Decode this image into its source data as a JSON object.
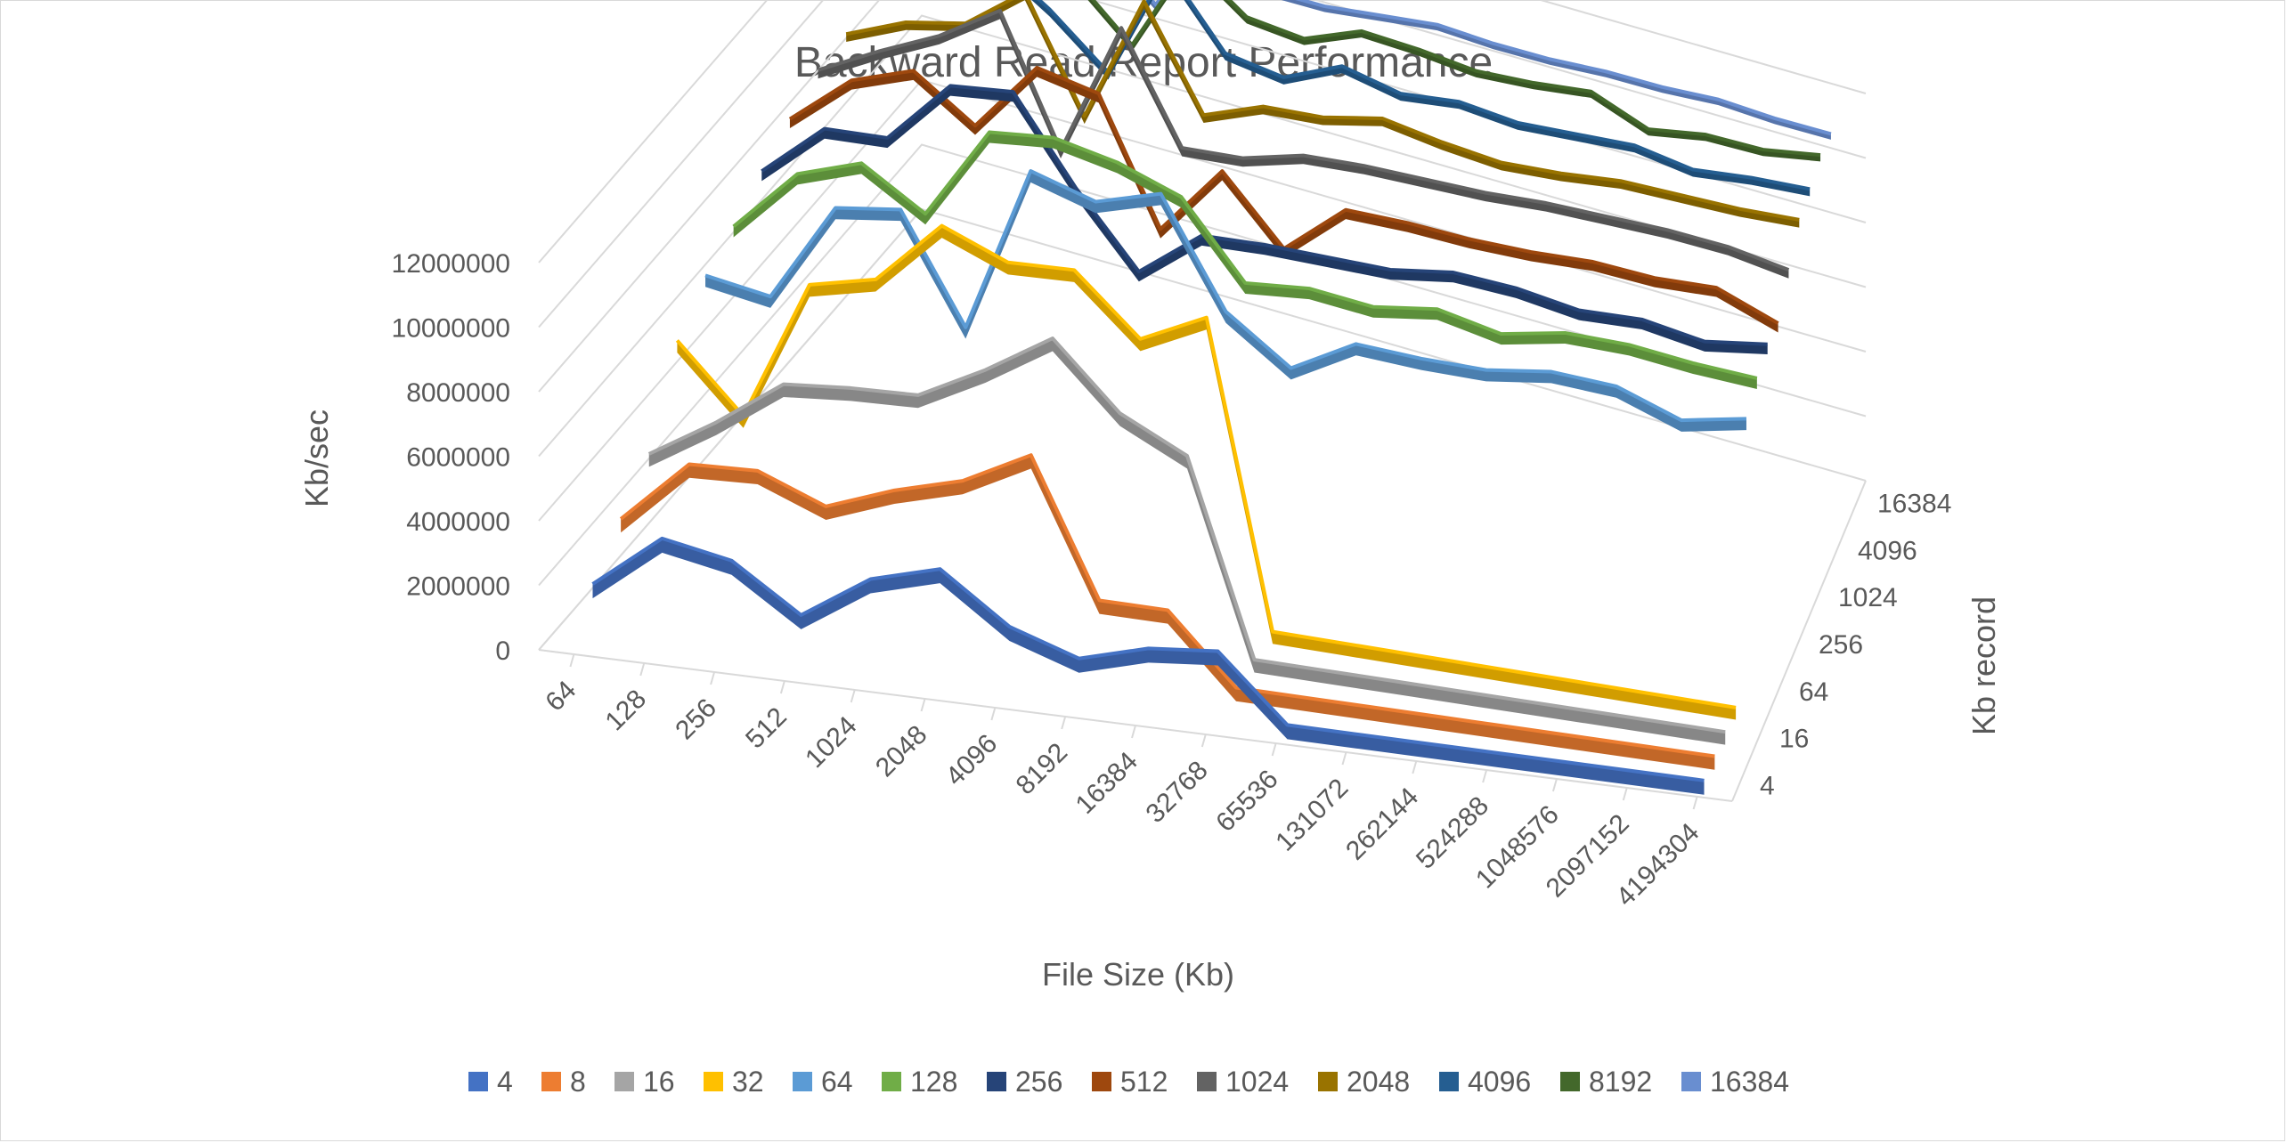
{
  "chart_data": {
    "type": "line",
    "subtype": "3d-line",
    "title": "Backward Read Report Performance",
    "xlabel": "File Size (Kb)",
    "ylabel": "Kb/sec",
    "zlabel": "Kb record",
    "ylim": [
      0,
      12000000
    ],
    "y_ticks": [
      "0",
      "2000000",
      "4000000",
      "6000000",
      "8000000",
      "10000000",
      "12000000"
    ],
    "categories": [
      "64",
      "128",
      "256",
      "512",
      "1024",
      "2048",
      "4096",
      "8192",
      "16384",
      "32768",
      "65536",
      "131072",
      "262144",
      "524288",
      "1048576",
      "2097152",
      "4194304"
    ],
    "depth_ticks": [
      "4",
      "16",
      "64",
      "256",
      "1024",
      "4096",
      "16384"
    ],
    "legend_position": "bottom",
    "grid": true,
    "series": [
      {
        "name": "4",
        "color": "#4472C4",
        "values": [
          1500000,
          3200000,
          2800000,
          1400000,
          2800000,
          3400000,
          1900000,
          1200000,
          1800000,
          2000000,
          0,
          0,
          0,
          0,
          0,
          0,
          0
        ]
      },
      {
        "name": "8",
        "color": "#ED7D31",
        "values": [
          2500000,
          4500000,
          4600000,
          3800000,
          4600000,
          5200000,
          6300000,
          2100000,
          2100000,
          0,
          0,
          0,
          0,
          0,
          0,
          0,
          0
        ]
      },
      {
        "name": "16",
        "color": "#A5A5A5",
        "values": [
          3500000,
          4800000,
          6300000,
          6500000,
          6600000,
          7700000,
          9000000,
          7000000,
          6000000,
          0,
          0,
          0,
          0,
          0,
          0,
          0,
          0
        ]
      },
      {
        "name": "32",
        "color": "#FFC000",
        "values": [
          6000000,
          4000000,
          8400000,
          8900000,
          10900000,
          10100000,
          10200000,
          8400000,
          9400000,
          0,
          0,
          0,
          0,
          0,
          0,
          0,
          0
        ]
      },
      {
        "name": "64",
        "color": "#5B9BD5",
        "values": [
          7000000,
          6700000,
          9800000,
          10100000,
          6800000,
          12000000,
          11400000,
          12000000,
          8700000,
          7300000,
          8400000,
          8300000,
          8300000,
          8600000,
          8500000,
          7800000,
          8200000
        ]
      },
      {
        "name": "128",
        "color": "#70AD47",
        "values": [
          7500000,
          9500000,
          10200000,
          9000000,
          11900000,
          12100000,
          11700000,
          11000000,
          8700000,
          8900000,
          8700000,
          9000000,
          8600000,
          9000000,
          9000000,
          8800000,
          8700000
        ]
      },
      {
        "name": "256",
        "color": "#264478",
        "values": [
          8200000,
          9900000,
          10000000,
          12000000,
          12200000,
          9600000,
          7400000,
          8900000,
          9000000,
          9000000,
          9000000,
          9300000,
          9200000,
          8900000,
          9000000,
          8700000,
          9000000
        ]
      },
      {
        "name": "512",
        "color": "#9E480E",
        "values": [
          8800000,
          10400000,
          11100000,
          9800000,
          12000000,
          11600000,
          7800000,
          10000000,
          8000000,
          9600000,
          9600000,
          9500000,
          9500000,
          9600000,
          9500000,
          9600000,
          8900000
        ]
      },
      {
        "name": "1024",
        "color": "#636363",
        "values": [
          9300000,
          10300000,
          11200000,
          12400000,
          8500000,
          12700000,
          9400000,
          9500000,
          10000000,
          10100000,
          10100000,
          10100000,
          10200000,
          10200000,
          10200000,
          10100000,
          9800000
        ]
      },
      {
        "name": "2048",
        "color": "#997300",
        "values": [
          9400000,
          10200000,
          10600000,
          12000000,
          8600000,
          12600000,
          9500000,
          10200000,
          10300000,
          10700000,
          10400000,
          10200000,
          10300000,
          10500000,
          10500000,
          10500000,
          10600000
        ]
      },
      {
        "name": "4096",
        "color": "#255E91",
        "values": [
          9800000,
          11000000,
          11700000,
          10500000,
          9000000,
          12700000,
          10500000,
          10200000,
          11000000,
          10600000,
          10800000,
          10600000,
          10700000,
          10800000,
          10500000,
          10700000,
          10800000
        ]
      },
      {
        "name": "8192",
        "color": "#43682B",
        "values": [
          10000000,
          11300000,
          11500000,
          10500000,
          8900000,
          12000000,
          10700000,
          10500000,
          11200000,
          11100000,
          10900000,
          11000000,
          11200000,
          10500000,
          10800000,
          10800000,
          11100000
        ]
      },
      {
        "name": "16384",
        "color": "#698ED0",
        "values": [
          10200000,
          11400000,
          11200000,
          10700000,
          9200000,
          12000000,
          10600000,
          10600000,
          10800000,
          11000000,
          10900000,
          10900000,
          11000000,
          11000000,
          11100000,
          11000000,
          11000000
        ]
      }
    ]
  }
}
